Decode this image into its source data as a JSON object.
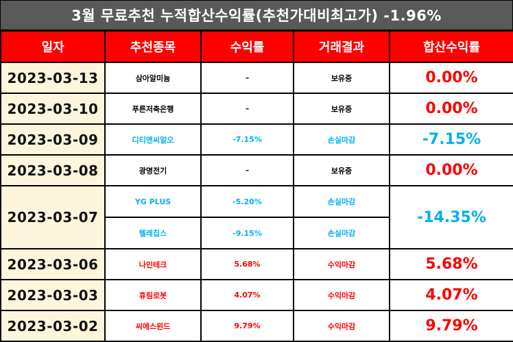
{
  "title": "3월 무료추천 누적합산수익률(추천가대비최고가) -1.96%",
  "headers": [
    "일자",
    "추천종목",
    "수익률",
    "거래결과",
    "합산수익률"
  ],
  "colors": {
    "header_bg": "#ff0000",
    "title_bg": "#595959",
    "date_bg": "#fdf6dc",
    "profit": "#ff0000",
    "loss": "#00b0f0",
    "neutral": "#000000"
  },
  "rows": [
    {
      "date": "2023-03-13",
      "stock": "삼아알미늄",
      "ret": "–",
      "result": "보유중",
      "sum": "0.00%"
    },
    {
      "date": "2023-03-10",
      "stock": "푸른저축은행",
      "ret": "–",
      "result": "보유중",
      "sum": "0.00%"
    },
    {
      "date": "2023-03-09",
      "stock": "디티앤씨알오",
      "ret": "-7.15%",
      "result": "손실마감",
      "sum": "-7.15%"
    },
    {
      "date": "2023-03-08",
      "stock": "광명전기",
      "ret": "–",
      "result": "보유중",
      "sum": "0.00%"
    },
    {
      "date": "2023-03-07",
      "stock": "YG PLUS",
      "ret": "-5.20%",
      "result": "손실마감",
      "sum": "-14.35%",
      "stock2": "텔레칩스",
      "ret2": "-9.15%",
      "result2": "손실마감"
    },
    {
      "date": "2023-03-06",
      "stock": "나인테크",
      "ret": "5.68%",
      "result": "수익마감",
      "sum": "5.68%"
    },
    {
      "date": "2023-03-03",
      "stock": "휴림로봇",
      "ret": "4.07%",
      "result": "수익마감",
      "sum": "4.07%"
    },
    {
      "date": "2023-03-02",
      "stock": "씨에스윈드",
      "ret": "9.79%",
      "result": "수익마감",
      "sum": "9.79%"
    }
  ]
}
